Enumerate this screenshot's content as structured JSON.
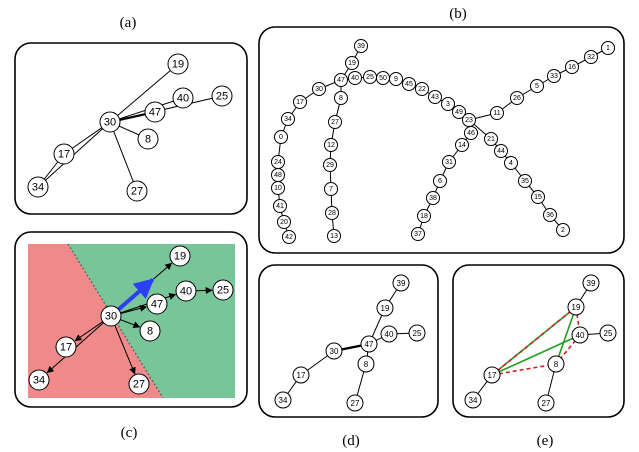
{
  "captions": {
    "a": "(a)",
    "b": "(b)",
    "c": "(c)",
    "d": "(d)",
    "e": "(e)"
  },
  "panel_a": {
    "nodes": [
      "30",
      "19",
      "47",
      "40",
      "25",
      "8",
      "17",
      "34",
      "27"
    ],
    "edges": [
      [
        "30",
        "19"
      ],
      [
        "30",
        "47"
      ],
      [
        "30",
        "40"
      ],
      [
        "30",
        "25"
      ],
      [
        "30",
        "8"
      ],
      [
        "30",
        "17"
      ],
      [
        "30",
        "34"
      ],
      [
        "30",
        "27"
      ],
      [
        "17",
        "34"
      ]
    ]
  },
  "panel_b": {
    "nodes": [
      "39",
      "19",
      "47",
      "30",
      "17",
      "34",
      "0",
      "24",
      "48",
      "10",
      "41",
      "20",
      "42",
      "40",
      "25",
      "50",
      "9",
      "45",
      "22",
      "43",
      "3",
      "49",
      "23",
      "8",
      "27",
      "12",
      "29",
      "7",
      "28",
      "13",
      "1",
      "32",
      "16",
      "33",
      "5",
      "26",
      "11",
      "21",
      "44",
      "4",
      "35",
      "15",
      "36",
      "2",
      "46",
      "14",
      "31",
      "6",
      "38",
      "18",
      "37"
    ]
  },
  "panel_c": {
    "nodes": [
      "30",
      "19",
      "47",
      "40",
      "25",
      "8",
      "17",
      "34",
      "27"
    ],
    "colors": {
      "left_region": "#f08a8a",
      "right_region": "#79c59a",
      "highlight_arrow": "#2b3ff5",
      "boundary": "#666666"
    }
  },
  "panel_d": {
    "nodes": [
      "39",
      "19",
      "40",
      "25",
      "47",
      "30",
      "8",
      "17",
      "34",
      "27"
    ]
  },
  "panel_e": {
    "nodes": [
      "39",
      "19",
      "40",
      "25",
      "8",
      "17",
      "34",
      "27"
    ],
    "colors": {
      "green_edge": "#1f9d1f",
      "red_dashed_edge": "#d21e1e"
    }
  }
}
